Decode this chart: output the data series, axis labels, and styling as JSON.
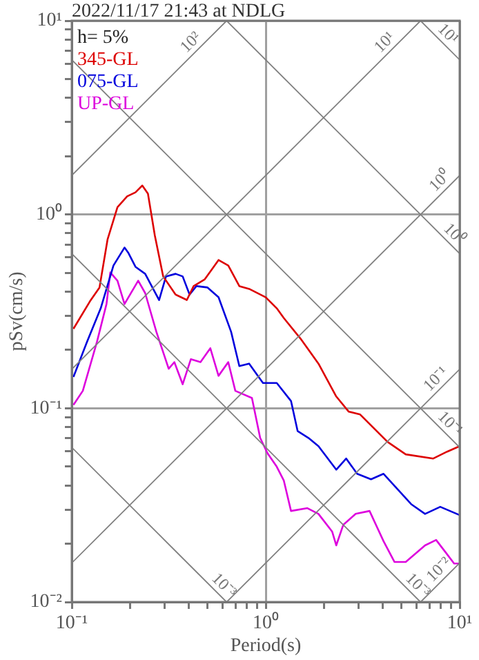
{
  "chart_data": {
    "type": "line",
    "title": "2022/11/17 21:43 at NDLG",
    "xlabel": "Period(s)",
    "ylabel": "pSv(cm/s)",
    "log": "xy",
    "grid": true,
    "legend": "top left",
    "marker": "none",
    "line_style": "solid",
    "xlim": [
      0.1,
      10
    ],
    "ylim": [
      0.01,
      10
    ],
    "xticks": [
      {
        "value": 0.1,
        "label": "10⁻¹"
      },
      {
        "value": 0.2,
        "label": null
      },
      {
        "value": 0.3,
        "label": null
      },
      {
        "value": 0.4,
        "label": null
      },
      {
        "value": 0.5,
        "label": null
      },
      {
        "value": 0.6,
        "label": null
      },
      {
        "value": 0.7,
        "label": null
      },
      {
        "value": 0.8,
        "label": null
      },
      {
        "value": 0.9,
        "label": null
      },
      {
        "value": 1,
        "label": "10⁰"
      },
      {
        "value": 2,
        "label": null
      },
      {
        "value": 3,
        "label": null
      },
      {
        "value": 4,
        "label": null
      },
      {
        "value": 5,
        "label": null
      },
      {
        "value": 6,
        "label": null
      },
      {
        "value": 7,
        "label": null
      },
      {
        "value": 8,
        "label": null
      },
      {
        "value": 9,
        "label": null
      },
      {
        "value": 10,
        "label": "10¹"
      }
    ],
    "yticks": [
      {
        "value": 0.01,
        "label": "10⁻²"
      },
      {
        "value": 0.02,
        "label": null
      },
      {
        "value": 0.03,
        "label": null
      },
      {
        "value": 0.04,
        "label": null
      },
      {
        "value": 0.05,
        "label": null
      },
      {
        "value": 0.06,
        "label": null
      },
      {
        "value": 0.07,
        "label": null
      },
      {
        "value": 0.08,
        "label": null
      },
      {
        "value": 0.09,
        "label": null
      },
      {
        "value": 0.1,
        "label": "10⁻¹"
      },
      {
        "value": 0.2,
        "label": null
      },
      {
        "value": 0.3,
        "label": null
      },
      {
        "value": 0.4,
        "label": null
      },
      {
        "value": 0.5,
        "label": null
      },
      {
        "value": 0.6,
        "label": null
      },
      {
        "value": 0.7,
        "label": null
      },
      {
        "value": 0.8,
        "label": null
      },
      {
        "value": 0.9,
        "label": null
      },
      {
        "value": 1,
        "label": "10⁰"
      },
      {
        "value": 2,
        "label": null
      },
      {
        "value": 3,
        "label": null
      },
      {
        "value": 4,
        "label": null
      },
      {
        "value": 5,
        "label": null
      },
      {
        "value": 6,
        "label": null
      },
      {
        "value": 7,
        "label": null
      },
      {
        "value": 8,
        "label": null
      },
      {
        "value": 9,
        "label": null
      },
      {
        "value": 10,
        "label": "10¹"
      }
    ],
    "annotations": [
      "h= 5%",
      {
        "text": "10²",
        "x": 0.447,
        "y": 7.1
      },
      {
        "text": "10¹",
        "x": 4.47,
        "y": 7.1
      },
      {
        "text": "10¹",
        "x": 8,
        "y": 7.85
      },
      {
        "text": "10⁰",
        "x": 8.6,
        "y": 1.37
      },
      {
        "text": "10⁰",
        "x": 8.6,
        "y": 0.73
      },
      {
        "text": "10⁻¹",
        "x": 8.2,
        "y": 0.13
      },
      {
        "text": "10⁻¹",
        "x": 8.2,
        "y": 0.0766
      },
      {
        "text": "10⁻²",
        "x": 8.5,
        "y": 0.0135
      },
      {
        "text": "10⁻³",
        "x": 5.6,
        "y": 0.0112
      },
      {
        "text": "10⁻³",
        "x": 0.56,
        "y": 0.0112
      }
    ],
    "series": [
      {
        "color": "#808080",
        "x": [
          0.1,
          0.629
        ],
        "values": [
          1.59,
          10
        ]
      },
      {
        "color": "#808080",
        "x": [
          0.1,
          6.29
        ],
        "values": [
          0.159,
          10
        ]
      },
      {
        "color": "#808080",
        "x": [
          0.1,
          10
        ],
        "values": [
          0.0159,
          1.59
        ]
      },
      {
        "color": "#808080",
        "x": [
          0.629,
          10
        ],
        "values": [
          0.01,
          0.159
        ]
      },
      {
        "color": "#808080",
        "x": [
          6.29,
          10
        ],
        "values": [
          0.01,
          0.0159
        ]
      },
      {
        "color": "#808080",
        "x": [
          6.28,
          10
        ],
        "values": [
          10,
          6.28
        ]
      },
      {
        "color": "#808080",
        "x": [
          0.628,
          10
        ],
        "values": [
          10,
          0.628
        ]
      },
      {
        "color": "#808080",
        "x": [
          0.1,
          10
        ],
        "values": [
          6.28,
          0.0628
        ]
      },
      {
        "color": "#808080",
        "x": [
          0.1,
          6.28
        ],
        "values": [
          0.628,
          0.01
        ]
      },
      {
        "color": "#808080",
        "x": [
          0.1,
          0.628
        ],
        "values": [
          0.0628,
          0.01
        ]
      },
      {
        "name": "345-GL",
        "color": "#dd0000",
        "x": [
          0.102,
          0.124,
          0.139,
          0.153,
          0.172,
          0.193,
          0.213,
          0.231,
          0.247,
          0.268,
          0.296,
          0.343,
          0.392,
          0.425,
          0.485,
          0.571,
          0.641,
          0.731,
          0.821,
          1.0,
          1.14,
          1.24,
          1.51,
          1.87,
          2.31,
          2.68,
          3.06,
          4.25,
          5.27,
          7.31,
          8.62,
          10
        ],
        "values": [
          0.257,
          0.356,
          0.42,
          0.745,
          1.09,
          1.24,
          1.3,
          1.41,
          1.28,
          0.78,
          0.479,
          0.386,
          0.362,
          0.427,
          0.463,
          0.582,
          0.545,
          0.427,
          0.413,
          0.374,
          0.328,
          0.292,
          0.229,
          0.17,
          0.115,
          0.096,
          0.093,
          0.067,
          0.0578,
          0.055,
          0.0597,
          0.0637
        ]
      },
      {
        "name": "075-GL",
        "color": "#0000dd",
        "x": [
          0.102,
          0.12,
          0.141,
          0.164,
          0.187,
          0.196,
          0.213,
          0.239,
          0.282,
          0.306,
          0.343,
          0.373,
          0.405,
          0.439,
          0.501,
          0.571,
          0.663,
          0.731,
          0.821,
          0.968,
          1.14,
          1.35,
          1.46,
          1.66,
          1.87,
          2.31,
          2.6,
          2.96,
          3.49,
          4.05,
          5.62,
          6.63,
          7.94,
          10
        ],
        "values": [
          0.145,
          0.221,
          0.328,
          0.545,
          0.675,
          0.632,
          0.537,
          0.494,
          0.362,
          0.479,
          0.494,
          0.479,
          0.386,
          0.427,
          0.42,
          0.374,
          0.248,
          0.165,
          0.17,
          0.135,
          0.135,
          0.109,
          0.0763,
          0.0703,
          0.0637,
          0.0482,
          0.055,
          0.0459,
          0.043,
          0.0459,
          0.032,
          0.0285,
          0.031,
          0.0281
        ]
      },
      {
        "name": "UP-GL",
        "color": "#dd00dd",
        "x": [
          0.102,
          0.114,
          0.135,
          0.151,
          0.158,
          0.172,
          0.187,
          0.22,
          0.239,
          0.273,
          0.316,
          0.338,
          0.373,
          0.411,
          0.461,
          0.518,
          0.571,
          0.641,
          0.697,
          0.849,
          0.936,
          1.02,
          1.14,
          1.24,
          1.35,
          1.64,
          1.87,
          2.2,
          2.31,
          2.51,
          2.91,
          3.43,
          4.05,
          4.61,
          5.27,
          6.63,
          7.56,
          8.48,
          9.36,
          10
        ],
        "values": [
          0.104,
          0.123,
          0.221,
          0.345,
          0.502,
          0.455,
          0.345,
          0.455,
          0.393,
          0.248,
          0.16,
          0.173,
          0.133,
          0.179,
          0.173,
          0.204,
          0.147,
          0.173,
          0.123,
          0.113,
          0.0703,
          0.0587,
          0.0499,
          0.0423,
          0.0295,
          0.0305,
          0.0285,
          0.0231,
          0.0196,
          0.025,
          0.0285,
          0.0295,
          0.0206,
          0.0161,
          0.0161,
          0.0196,
          0.0209,
          0.018,
          0.0158,
          0.0158
        ]
      }
    ]
  }
}
